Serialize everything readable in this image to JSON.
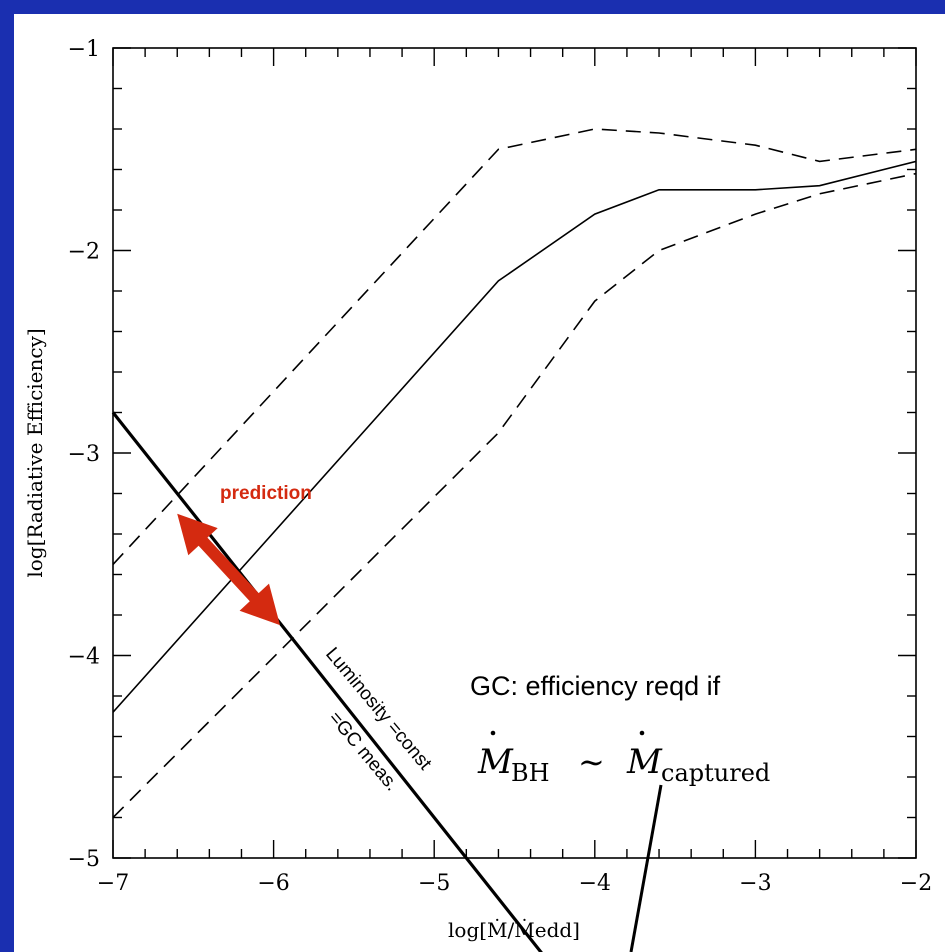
{
  "chart_data": {
    "type": "line",
    "xlabel": "log[Ṁ/Ṁedd]",
    "ylabel": "log[Radiative Efficiency]",
    "xlim": [
      -7,
      -2
    ],
    "ylim": [
      -5,
      -1
    ],
    "x_ticks": [
      "−7",
      "−6",
      "−5",
      "−4",
      "−3",
      "−2"
    ],
    "y_ticks": [
      "−5",
      "−4",
      "−3",
      "−2",
      "−1"
    ],
    "series": [
      {
        "style": "solid",
        "x": [
          -7,
          -4.6,
          -4,
          -3.6,
          -3,
          -2.6,
          -2
        ],
        "y": [
          -4.28,
          -2.15,
          -1.82,
          -1.7,
          -1.7,
          -1.68,
          -1.56
        ]
      },
      {
        "style": "dashed",
        "x": [
          -7,
          -4.6,
          -4,
          -3.6,
          -3,
          -2.6,
          -2
        ],
        "y": [
          -3.55,
          -1.5,
          -1.4,
          -1.42,
          -1.48,
          -1.56,
          -1.5
        ]
      },
      {
        "style": "dashed",
        "x": [
          -7,
          -4.6,
          -4,
          -3.6,
          -3,
          -2.6,
          -2
        ],
        "y": [
          -4.8,
          -2.9,
          -2.25,
          -2.0,
          -1.82,
          -1.72,
          -1.62
        ]
      }
    ],
    "annotations": {
      "luminosity_line": {
        "x": [
          -7,
          -4.3
        ],
        "y": [
          -2.8,
          -5.5
        ]
      },
      "prediction_arrow": {
        "x": [
          -6.6,
          -5.96
        ],
        "y": [
          -3.3,
          -3.85
        ]
      },
      "prediction_label": "prediction",
      "luminosity_label": "Luminosity =const",
      "gc_meas_label": "=GC meas.",
      "gc_label": "GC: efficiency reqd if",
      "gc_formula_lhs": "M",
      "gc_formula_lhs_sub": "BH",
      "gc_formula_sim": "∼",
      "gc_formula_rhs": "M",
      "gc_formula_rhs_sub": "captured"
    }
  }
}
